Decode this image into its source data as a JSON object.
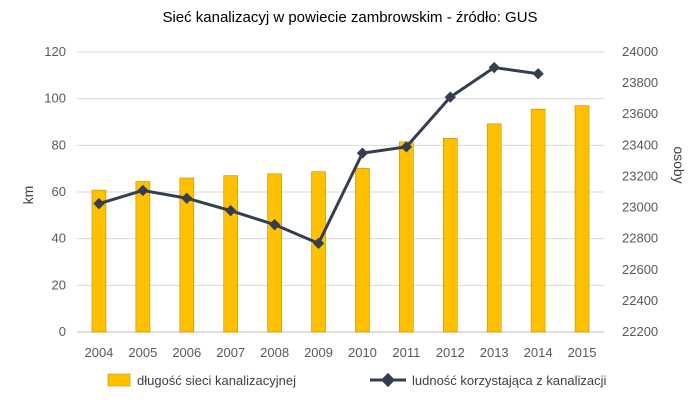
{
  "chart_data": {
    "type": "bar",
    "title": "Sieć kanalizacyj  w powiecie zambrowskim - źródło: GUS",
    "categories": [
      "2004",
      "2005",
      "2006",
      "2007",
      "2008",
      "2009",
      "2010",
      "2011",
      "2012",
      "2013",
      "2014",
      "2015"
    ],
    "series": [
      {
        "name": "długość sieci kanalizacyjnej",
        "type": "bar",
        "axis": "left",
        "color": "#FFC000",
        "values": [
          60.8,
          64.5,
          66.0,
          67.0,
          67.8,
          68.7,
          70.2,
          81.5,
          83.0,
          89.2,
          95.5,
          97.0
        ]
      },
      {
        "name": "ludność korzystająca z  kanalizacji",
        "type": "line",
        "axis": "right",
        "color": "#333F4F",
        "values": [
          23025,
          23110,
          23060,
          22980,
          22890,
          22770,
          23350,
          23390,
          23710,
          23900,
          23860,
          null
        ]
      }
    ],
    "ylabel": "km",
    "y2label": "osoby",
    "ylim": [
      0,
      120
    ],
    "yticks": [
      "0",
      "20",
      "40",
      "60",
      "80",
      "100",
      "120"
    ],
    "y2lim": [
      22200,
      24000
    ],
    "y2ticks": [
      "22200",
      "22400",
      "22600",
      "22800",
      "23000",
      "23200",
      "23400",
      "23600",
      "23800",
      "24000"
    ],
    "grid": true,
    "legend": "bottom"
  }
}
